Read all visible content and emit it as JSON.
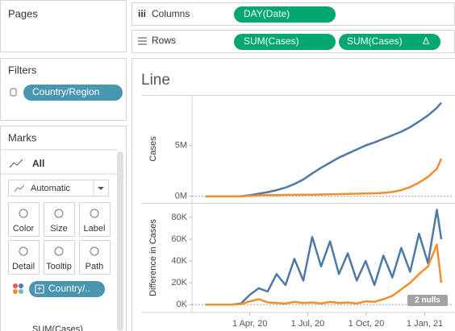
{
  "sidebar": {
    "pages": {
      "title": "Pages"
    },
    "filters": {
      "title": "Filters",
      "pill": "Country/Region"
    },
    "marks": {
      "title": "Marks",
      "card": "All",
      "mark_type": "Automatic",
      "buttons": [
        "Color",
        "Size",
        "Label",
        "Detail",
        "Tooltip",
        "Path"
      ],
      "pills": [
        "Country/..",
        "SUM(Cases)"
      ]
    }
  },
  "shelves": {
    "columns": {
      "label": "Columns",
      "pills": [
        "DAY(Date)"
      ]
    },
    "rows": {
      "label": "Rows",
      "pills": [
        "SUM(Cases)",
        "SUM(Cases)"
      ],
      "delta": "Δ"
    }
  },
  "sheet_title": "Line",
  "null_indicator": "2 nulls",
  "chart_data": [
    {
      "type": "line",
      "y_label": "Cases",
      "x": [
        "2020-01-22",
        "2020-02-05",
        "2020-02-19",
        "2020-03-04",
        "2020-03-18",
        "2020-04-01",
        "2020-04-15",
        "2020-04-29",
        "2020-05-13",
        "2020-05-27",
        "2020-06-10",
        "2020-06-24",
        "2020-07-08",
        "2020-07-22",
        "2020-08-05",
        "2020-08-19",
        "2020-09-02",
        "2020-09-16",
        "2020-09-30",
        "2020-10-14",
        "2020-10-28",
        "2020-11-11",
        "2020-11-25",
        "2020-12-09",
        "2020-12-23",
        "2021-01-06",
        "2021-01-20",
        "2021-01-27"
      ],
      "series": [
        {
          "color": "#4e79a7",
          "values": [
            0,
            0,
            0,
            0,
            10000,
            100000,
            250000,
            400000,
            600000,
            850000,
            1200000,
            1650000,
            2250000,
            2800000,
            3300000,
            3800000,
            4200000,
            4600000,
            5000000,
            5300000,
            5650000,
            6000000,
            6350000,
            6800000,
            7350000,
            7950000,
            8700000,
            9200000
          ]
        },
        {
          "color": "#f28e2b",
          "values": [
            0,
            0,
            0,
            0,
            5000,
            40000,
            90000,
            110000,
            120000,
            130000,
            140000,
            150000,
            160000,
            170000,
            190000,
            210000,
            230000,
            250000,
            270000,
            290000,
            330000,
            420000,
            600000,
            900000,
            1350000,
            1900000,
            2700000,
            3700000
          ]
        }
      ],
      "xlim": [
        "2020-01-01",
        "2021-02-15"
      ],
      "ylim": [
        -500000,
        9800000
      ],
      "yticks": [
        {
          "value": 0,
          "label": "0M"
        },
        {
          "value": 5000000,
          "label": "5M"
        }
      ],
      "zero_line": true
    },
    {
      "type": "line",
      "y_label": "Difference in Cases",
      "x": [
        "2020-01-22",
        "2020-02-05",
        "2020-02-19",
        "2020-03-04",
        "2020-03-18",
        "2020-04-01",
        "2020-04-15",
        "2020-04-29",
        "2020-05-13",
        "2020-05-27",
        "2020-06-10",
        "2020-06-24",
        "2020-07-08",
        "2020-07-22",
        "2020-08-05",
        "2020-08-19",
        "2020-09-02",
        "2020-09-16",
        "2020-09-30",
        "2020-10-14",
        "2020-10-28",
        "2020-11-11",
        "2020-11-25",
        "2020-12-09",
        "2020-12-23",
        "2021-01-06",
        "2021-01-20",
        "2021-01-27"
      ],
      "series": [
        {
          "color": "#4e79a7",
          "values": [
            0,
            0,
            0,
            0,
            1000,
            9000,
            15000,
            12000,
            28000,
            18000,
            42000,
            22000,
            62000,
            35000,
            58000,
            28000,
            47000,
            22000,
            40000,
            18000,
            45000,
            25000,
            52000,
            30000,
            65000,
            38000,
            87000,
            60000
          ]
        },
        {
          "color": "#f28e2b",
          "values": [
            0,
            0,
            0,
            0,
            500,
            3000,
            5000,
            2000,
            1500,
            1000,
            2500,
            1500,
            2000,
            1000,
            2500,
            1500,
            2000,
            1000,
            3000,
            2500,
            5000,
            8000,
            14000,
            20000,
            28000,
            35000,
            55000,
            20000
          ]
        }
      ],
      "xlim": [
        "2020-01-01",
        "2021-02-15"
      ],
      "ylim": [
        -5000,
        91000
      ],
      "yticks": [
        {
          "value": 0,
          "label": "0K"
        },
        {
          "value": 20000,
          "label": "20K"
        },
        {
          "value": 40000,
          "label": "40K"
        },
        {
          "value": 60000,
          "label": "60K"
        },
        {
          "value": 80000,
          "label": "80K"
        }
      ],
      "xticks": [
        {
          "value": "2020-04-01",
          "label": "1 Apr, 20"
        },
        {
          "value": "2020-07-01",
          "label": "1 Jul, 20"
        },
        {
          "value": "2020-10-01",
          "label": "1 Oct, 20"
        },
        {
          "value": "2021-01-01",
          "label": "1 Jan, 21"
        }
      ],
      "zero_line": true
    }
  ]
}
